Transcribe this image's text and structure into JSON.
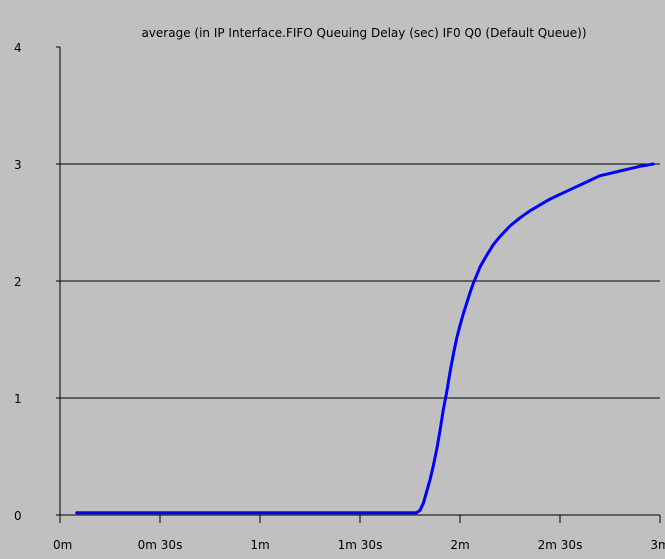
{
  "chart_data": {
    "type": "line",
    "title": "average (in IP Interface.FIFO Queuing Delay (sec) IF0 Q0 (Default Queue))",
    "xlabel": "",
    "ylabel": "",
    "xlim_seconds": [
      0,
      180
    ],
    "ylim": [
      0,
      4
    ],
    "x_ticks": [
      {
        "value": 0,
        "label": "0m"
      },
      {
        "value": 30,
        "label": "0m 30s"
      },
      {
        "value": 60,
        "label": "1m"
      },
      {
        "value": 90,
        "label": "1m 30s"
      },
      {
        "value": 120,
        "label": "2m"
      },
      {
        "value": 150,
        "label": "2m 30s"
      },
      {
        "value": 180,
        "label": "3m"
      }
    ],
    "y_ticks": [
      {
        "value": 0,
        "label": "0"
      },
      {
        "value": 1,
        "label": "1"
      },
      {
        "value": 2,
        "label": "2"
      },
      {
        "value": 3,
        "label": "3"
      },
      {
        "value": 4,
        "label": "4"
      }
    ],
    "grid": {
      "horizontal": [
        1,
        2,
        3
      ],
      "vertical": false
    },
    "series": [
      {
        "color": "#0000ff",
        "x": [
          5,
          20,
          40,
          60,
          80,
          95,
          107,
          108,
          109,
          110,
          111,
          112,
          113,
          114,
          115,
          116,
          117,
          118,
          119,
          120,
          121,
          122,
          123,
          124,
          125,
          126,
          127,
          128,
          130,
          132,
          135,
          138,
          141,
          144,
          147,
          150,
          153,
          156,
          159,
          162,
          165,
          168,
          171,
          174,
          176,
          178
        ],
        "y": [
          0.02,
          0.02,
          0.02,
          0.02,
          0.02,
          0.02,
          0.02,
          0.04,
          0.1,
          0.2,
          0.3,
          0.42,
          0.56,
          0.72,
          0.9,
          1.05,
          1.22,
          1.37,
          1.51,
          1.62,
          1.72,
          1.81,
          1.9,
          1.98,
          2.05,
          2.12,
          2.17,
          2.22,
          2.31,
          2.38,
          2.47,
          2.54,
          2.6,
          2.65,
          2.7,
          2.74,
          2.78,
          2.82,
          2.86,
          2.9,
          2.92,
          2.94,
          2.96,
          2.98,
          2.99,
          3.0
        ]
      }
    ]
  }
}
